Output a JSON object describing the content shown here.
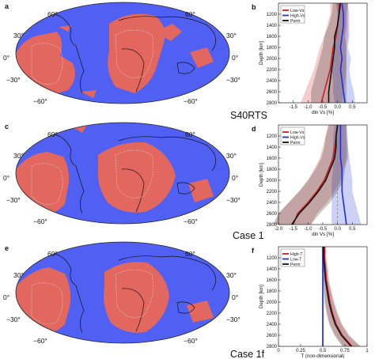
{
  "panels": [
    {
      "letter": "a",
      "label": "S40RTS",
      "lat_labels": [
        "60°",
        "30°",
        "0°",
        "−30°",
        "−60°"
      ]
    },
    {
      "letter": "c",
      "label": "Case 1",
      "lat_labels": [
        "60°",
        "30°",
        "0°",
        "−30°",
        "−60°"
      ]
    },
    {
      "letter": "e",
      "label": "Case 1f",
      "lat_labels": [
        "60°",
        "30°",
        "0°",
        "−30°",
        "−60°"
      ]
    }
  ],
  "colors": {
    "ocean": "#5060f2",
    "llsvp": "#e2675f",
    "red": "#cc1f1f",
    "blue": "#1f2fd6",
    "black": "#111111"
  },
  "chart_data": [
    {
      "type": "line",
      "panel": "b",
      "xlabel": "dln Vs [%]",
      "ylabel": "Depth [km]",
      "xlim": [
        -2.0,
        1.0
      ],
      "ylim": [
        2800,
        1000
      ],
      "xticks": [
        "-1.5",
        "-1.0",
        "-0.5",
        "0.0",
        "0.5"
      ],
      "xtick_values": [
        -1.5,
        -1.0,
        -0.5,
        0.0,
        0.5
      ],
      "yticks": [
        1200,
        1400,
        1600,
        1800,
        2000,
        2200,
        2400,
        2600,
        2800
      ],
      "legend": [
        "Low-Vs",
        "High-Vs",
        "Perm"
      ],
      "series": [
        {
          "name": "Low-Vs",
          "color": "#cc1f1f",
          "depth": [
            1000,
            1200,
            1400,
            1600,
            1800,
            2000,
            2200,
            2400,
            2600,
            2800
          ],
          "values": [
            0.05,
            0.05,
            0.0,
            -0.05,
            -0.15,
            -0.2,
            -0.25,
            -0.35,
            -0.45,
            -0.55
          ],
          "spread": [
            0.3,
            0.3,
            0.35,
            0.4,
            0.45,
            0.5,
            0.55,
            0.6,
            0.65,
            0.7
          ]
        },
        {
          "name": "High-Vs",
          "color": "#1f2fd6",
          "depth": [
            1000,
            1200,
            1400,
            1600,
            1800,
            2000,
            2200,
            2400,
            2600,
            2800
          ],
          "values": [
            0.15,
            0.2,
            0.2,
            0.15,
            0.1,
            0.15,
            0.1,
            0.15,
            0.2,
            0.25
          ],
          "spread": [
            0.2,
            0.2,
            0.2,
            0.25,
            0.25,
            0.3,
            0.3,
            0.3,
            0.35,
            0.35
          ]
        },
        {
          "name": "Perm",
          "color": "#111111",
          "depth": [
            1000,
            1200,
            1400,
            1600,
            1800,
            2000,
            2200,
            2400,
            2600,
            2800
          ],
          "values": [
            0.1,
            0.05,
            0.0,
            -0.1,
            -0.1,
            -0.15,
            -0.2,
            -0.25,
            -0.3,
            -0.3
          ],
          "spread": [
            0.25,
            0.25,
            0.3,
            0.35,
            0.4,
            0.45,
            0.5,
            0.55,
            0.6,
            0.6
          ]
        }
      ],
      "dashed_line_x": 0.0
    },
    {
      "type": "line",
      "panel": "d",
      "xlabel": "dln Vs [%]",
      "ylabel": "Depth [km]",
      "xlim": [
        -2.0,
        1.0
      ],
      "ylim": [
        2800,
        1000
      ],
      "xticks": [
        "-2.0",
        "-1.5",
        "-1.0",
        "-0.5",
        "0.0",
        "0.5"
      ],
      "xtick_values": [
        -2.0,
        -1.5,
        -1.0,
        -0.5,
        0.0,
        0.5
      ],
      "yticks": [
        1200,
        1400,
        1600,
        1800,
        2000,
        2200,
        2400,
        2600,
        2800
      ],
      "legend": [
        "Low-Vs",
        "High-Vs",
        "Perm"
      ],
      "series": [
        {
          "name": "Low-Vs",
          "color": "#cc1f1f",
          "depth": [
            1000,
            1200,
            1400,
            1600,
            1800,
            2000,
            2200,
            2400,
            2600,
            2800
          ],
          "values": [
            0.0,
            -0.05,
            -0.1,
            -0.15,
            -0.3,
            -0.45,
            -0.7,
            -1.0,
            -1.35,
            -1.5
          ],
          "spread": [
            0.3,
            0.35,
            0.4,
            0.45,
            0.5,
            0.55,
            0.6,
            0.65,
            0.65,
            0.6
          ]
        },
        {
          "name": "High-Vs",
          "color": "#1f2fd6",
          "depth": [
            1000,
            1200,
            1400,
            1600,
            1800,
            2000,
            2200,
            2400,
            2600,
            2800
          ],
          "values": [
            0.1,
            0.1,
            0.1,
            0.1,
            0.15,
            0.15,
            0.15,
            0.2,
            0.25,
            0.3
          ],
          "spread": [
            0.2,
            0.25,
            0.25,
            0.3,
            0.3,
            0.35,
            0.35,
            0.4,
            0.45,
            0.5
          ]
        },
        {
          "name": "Perm",
          "color": "#111111",
          "depth": [
            1000,
            1200,
            1400,
            1600,
            1800,
            2000,
            2200,
            2400,
            2600,
            2800
          ],
          "values": [
            0.0,
            -0.05,
            -0.05,
            -0.1,
            -0.25,
            -0.4,
            -0.65,
            -0.95,
            -1.3,
            -1.55
          ],
          "spread": [
            0.3,
            0.35,
            0.4,
            0.45,
            0.5,
            0.6,
            0.65,
            0.7,
            0.7,
            0.65
          ]
        }
      ],
      "dashed_line_x": 0.0
    },
    {
      "type": "line",
      "panel": "f",
      "xlabel": "T (non-dimensional)",
      "ylabel": "Depth [km]",
      "xlim": [
        0.0,
        1.0
      ],
      "ylim": [
        2800,
        1000
      ],
      "xticks": [
        "0",
        "0.25",
        "0.5",
        "0.75",
        "1"
      ],
      "xtick_values": [
        0,
        0.25,
        0.5,
        0.75,
        1.0
      ],
      "yticks": [
        1200,
        1400,
        1600,
        1800,
        2000,
        2200,
        2400,
        2600,
        2800
      ],
      "legend": [
        "High-T",
        "Low-T",
        "Perm"
      ],
      "series": [
        {
          "name": "High-T",
          "color": "#cc1f1f",
          "depth": [
            1000,
            1200,
            1400,
            1600,
            1800,
            2000,
            2200,
            2400,
            2600,
            2800
          ],
          "values": [
            0.52,
            0.52,
            0.53,
            0.54,
            0.56,
            0.58,
            0.61,
            0.65,
            0.72,
            0.83
          ],
          "spread": [
            0.02,
            0.02,
            0.03,
            0.03,
            0.04,
            0.05,
            0.06,
            0.07,
            0.08,
            0.1
          ]
        },
        {
          "name": "Low-T",
          "color": "#1f2fd6",
          "depth": [
            1000,
            1200,
            1400,
            1600,
            1800,
            2000,
            2200,
            2400,
            2600,
            2800
          ],
          "values": [
            0.5,
            0.5,
            0.5,
            0.5,
            0.5,
            0.5,
            0.5,
            0.5,
            0.5,
            0.5
          ],
          "spread": [
            0.01,
            0.01,
            0.01,
            0.01,
            0.01,
            0.01,
            0.01,
            0.01,
            0.01,
            0.01
          ]
        },
        {
          "name": "Perm",
          "color": "#111111",
          "depth": [
            1000,
            1200,
            1400,
            1600,
            1800,
            2000,
            2200,
            2400,
            2600,
            2800
          ],
          "values": [
            0.51,
            0.51,
            0.52,
            0.53,
            0.55,
            0.57,
            0.6,
            0.64,
            0.71,
            0.82
          ],
          "spread": [
            0.02,
            0.02,
            0.03,
            0.03,
            0.04,
            0.05,
            0.06,
            0.07,
            0.08,
            0.1
          ]
        }
      ],
      "dashed_line_x": 0.5
    }
  ]
}
